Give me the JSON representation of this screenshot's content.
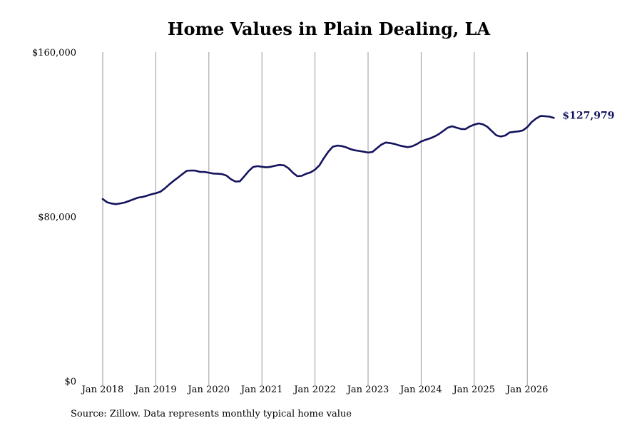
{
  "chart_data": {
    "type": "line",
    "title": "Home Values in Plain Dealing, LA",
    "source": "Source: Zillow. Data represents monthly typical home value",
    "xlabel": "",
    "ylabel": "",
    "ylim": [
      0,
      160000
    ],
    "xlim": [
      "2018-01",
      "2026-08"
    ],
    "y_ticks": [
      {
        "value": 0,
        "label": "$0"
      },
      {
        "value": 80000,
        "label": "$80,000"
      },
      {
        "value": 160000,
        "label": "$160,000"
      }
    ],
    "x_ticks": [
      {
        "date": "2018-01",
        "label": "Jan 2018"
      },
      {
        "date": "2019-01",
        "label": "Jan 2019"
      },
      {
        "date": "2020-01",
        "label": "Jan 2020"
      },
      {
        "date": "2021-01",
        "label": "Jan 2021"
      },
      {
        "date": "2022-01",
        "label": "Jan 2022"
      },
      {
        "date": "2023-01",
        "label": "Jan 2023"
      },
      {
        "date": "2024-01",
        "label": "Jan 2024"
      },
      {
        "date": "2025-01",
        "label": "Jan 2025"
      },
      {
        "date": "2026-01",
        "label": "Jan 2026"
      }
    ],
    "grid": {
      "vertical": true,
      "horizontal": false
    },
    "line_color": "#13135e",
    "grid_color": "#999999",
    "end_label": "$127,979",
    "series": [
      {
        "x": [
          "2018-01",
          "2018-02",
          "2018-03",
          "2018-04",
          "2018-05",
          "2018-06",
          "2018-07",
          "2018-08",
          "2018-09",
          "2018-10",
          "2018-11",
          "2018-12",
          "2019-01",
          "2019-02",
          "2019-03",
          "2019-04",
          "2019-05",
          "2019-06",
          "2019-07",
          "2019-08",
          "2019-09",
          "2019-10",
          "2019-11",
          "2019-12",
          "2020-01",
          "2020-02",
          "2020-03",
          "2020-04",
          "2020-05",
          "2020-06",
          "2020-07",
          "2020-08",
          "2020-09",
          "2020-10",
          "2020-11",
          "2020-12",
          "2021-01",
          "2021-02",
          "2021-03",
          "2021-04",
          "2021-05",
          "2021-06",
          "2021-07",
          "2021-08",
          "2021-09",
          "2021-10",
          "2021-11",
          "2021-12",
          "2022-01",
          "2022-02",
          "2022-03",
          "2022-04",
          "2022-05",
          "2022-06",
          "2022-07",
          "2022-08",
          "2022-09",
          "2022-10",
          "2022-11",
          "2022-12",
          "2023-01",
          "2023-02",
          "2023-03",
          "2023-04",
          "2023-05",
          "2023-06",
          "2023-07",
          "2023-08",
          "2023-09",
          "2023-10",
          "2023-11",
          "2023-12",
          "2024-01",
          "2024-02",
          "2024-03",
          "2024-04",
          "2024-05",
          "2024-06",
          "2024-07",
          "2024-08",
          "2024-09",
          "2024-10",
          "2024-11",
          "2024-12",
          "2025-01",
          "2025-02",
          "2025-03",
          "2025-04",
          "2025-05",
          "2025-06",
          "2025-07",
          "2025-08",
          "2025-09",
          "2025-10",
          "2025-11",
          "2025-12",
          "2026-01",
          "2026-02",
          "2026-03",
          "2026-04",
          "2026-05",
          "2026-06",
          "2026-07"
        ],
        "y": [
          88500,
          86900,
          86300,
          86000,
          86400,
          86800,
          87600,
          88400,
          89200,
          89500,
          90100,
          90800,
          91300,
          92000,
          93600,
          95500,
          97300,
          98900,
          100600,
          102200,
          102400,
          102300,
          101700,
          101700,
          101300,
          100900,
          100800,
          100600,
          99900,
          98100,
          97000,
          97100,
          99500,
          102100,
          104100,
          104500,
          104200,
          103900,
          104200,
          104700,
          105100,
          104900,
          103500,
          101300,
          99600,
          99800,
          100800,
          101500,
          102800,
          104900,
          108400,
          111500,
          113900,
          114500,
          114300,
          113700,
          112800,
          112200,
          111900,
          111500,
          111100,
          111400,
          113200,
          115000,
          116000,
          115700,
          115300,
          114600,
          114100,
          113700,
          114200,
          115200,
          116500,
          117300,
          118000,
          118900,
          120100,
          121600,
          123200,
          123900,
          123200,
          122600,
          122500,
          123800,
          124700,
          125300,
          124800,
          123600,
          121500,
          119500,
          118900,
          119400,
          120900,
          121200,
          121400,
          121900,
          123500,
          126000,
          127700,
          128900,
          128800,
          128600,
          127979
        ]
      }
    ]
  }
}
